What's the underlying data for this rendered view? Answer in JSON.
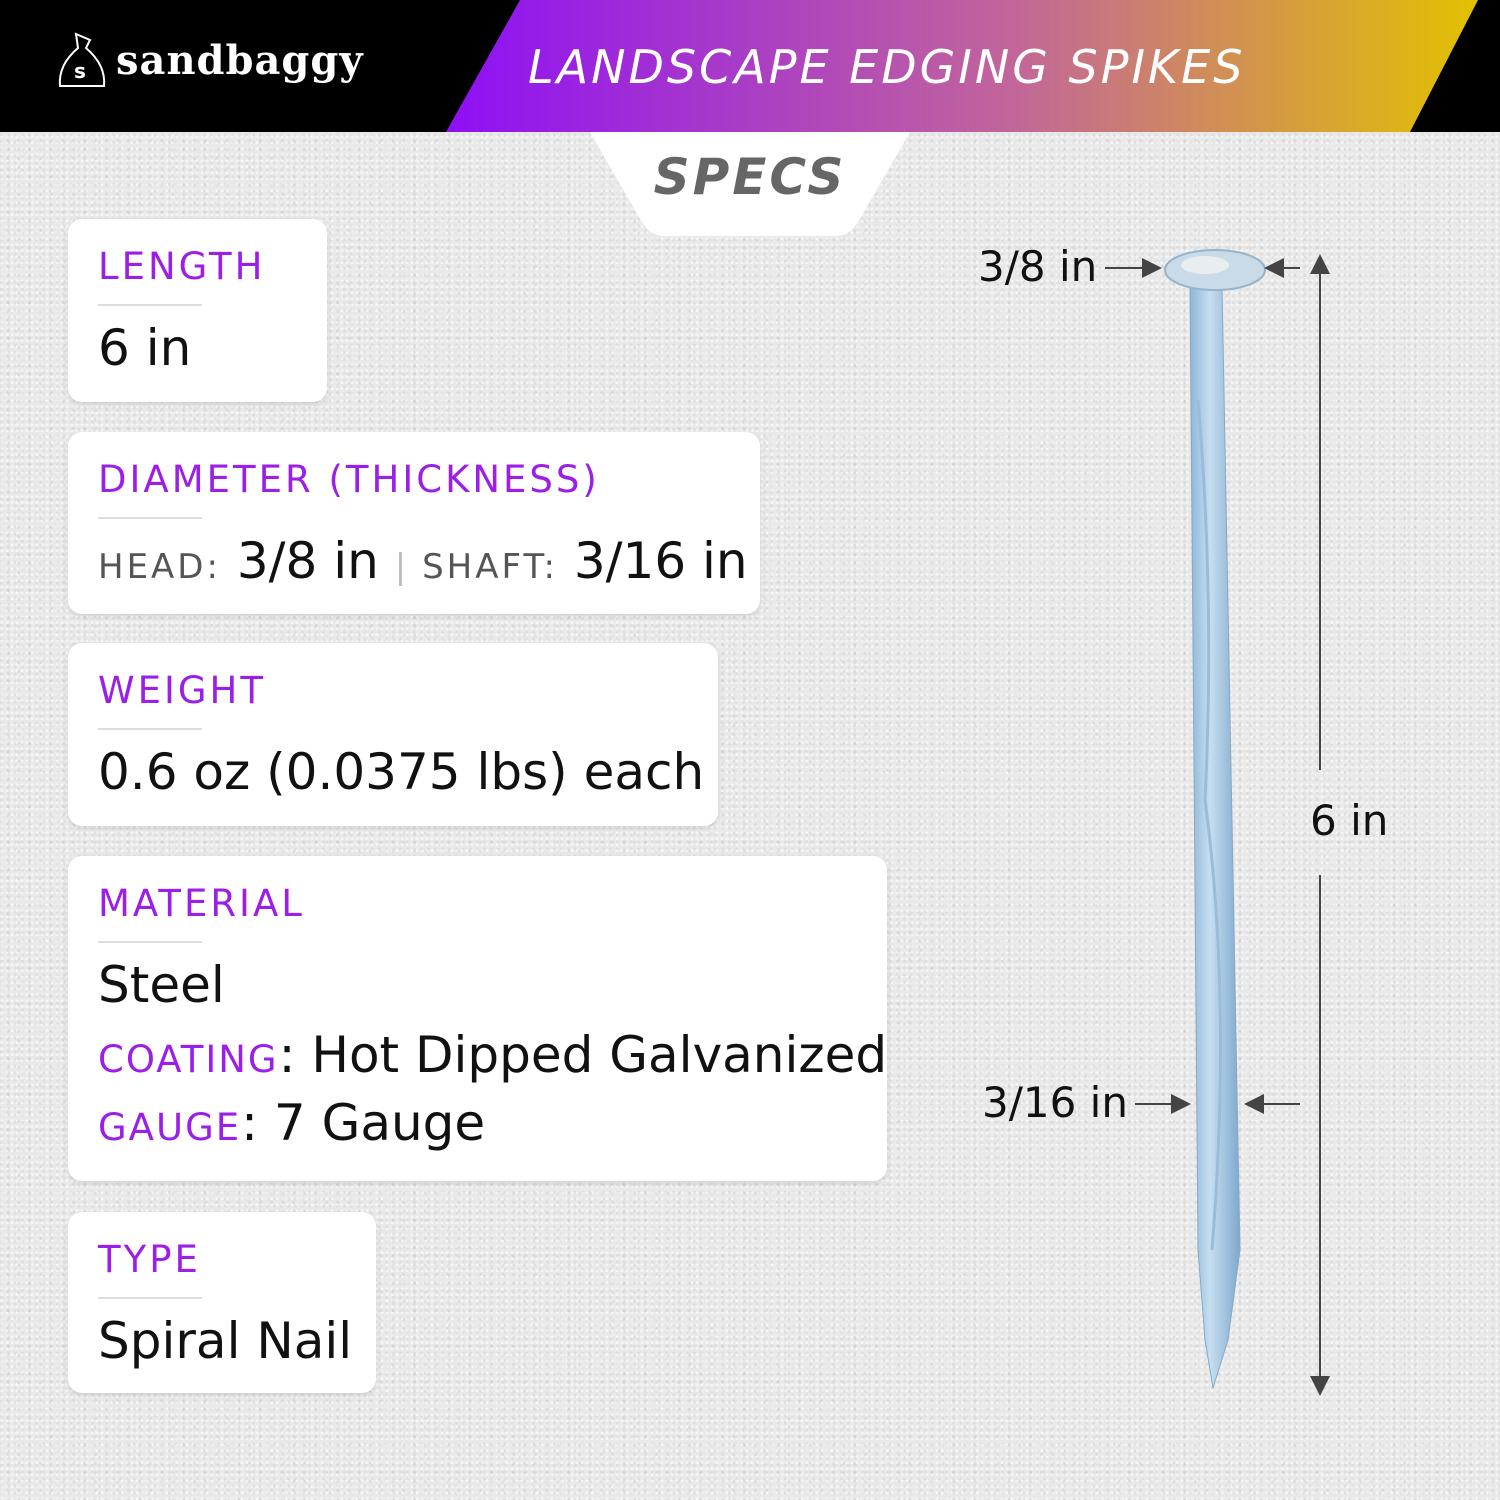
{
  "header": {
    "brand": "sandbaggy",
    "title": "LANDSCAPE EDGING SPIKES",
    "gradient": [
      "#8e0ff6",
      "#c2669a",
      "#e3c100"
    ]
  },
  "tab": {
    "label": "SPECS"
  },
  "specs": {
    "length": {
      "label": "LENGTH",
      "value": "6 in"
    },
    "diameter": {
      "label": "DIAMETER (THICKNESS)",
      "head_label": "HEAD:",
      "head_value": "3/8 in",
      "separator": "|",
      "shaft_label": "SHAFT:",
      "shaft_value": "3/16 in"
    },
    "weight": {
      "label": "WEIGHT",
      "value": "0.6 oz (0.0375 lbs) each"
    },
    "material": {
      "label": "MATERIAL",
      "value": "Steel",
      "coating_label": "COATING",
      "coating_value": ": Hot Dipped Galvanized",
      "gauge_label": "GAUGE",
      "gauge_value": ": 7 Gauge"
    },
    "type": {
      "label": "TYPE",
      "value": "Spiral Nail"
    }
  },
  "diagram": {
    "head_dim": "3/8 in",
    "length_dim": "6 in",
    "shaft_dim": "3/16 in"
  },
  "colors": {
    "accent": "#9b1fe8",
    "nail": "#a9cbe6"
  }
}
